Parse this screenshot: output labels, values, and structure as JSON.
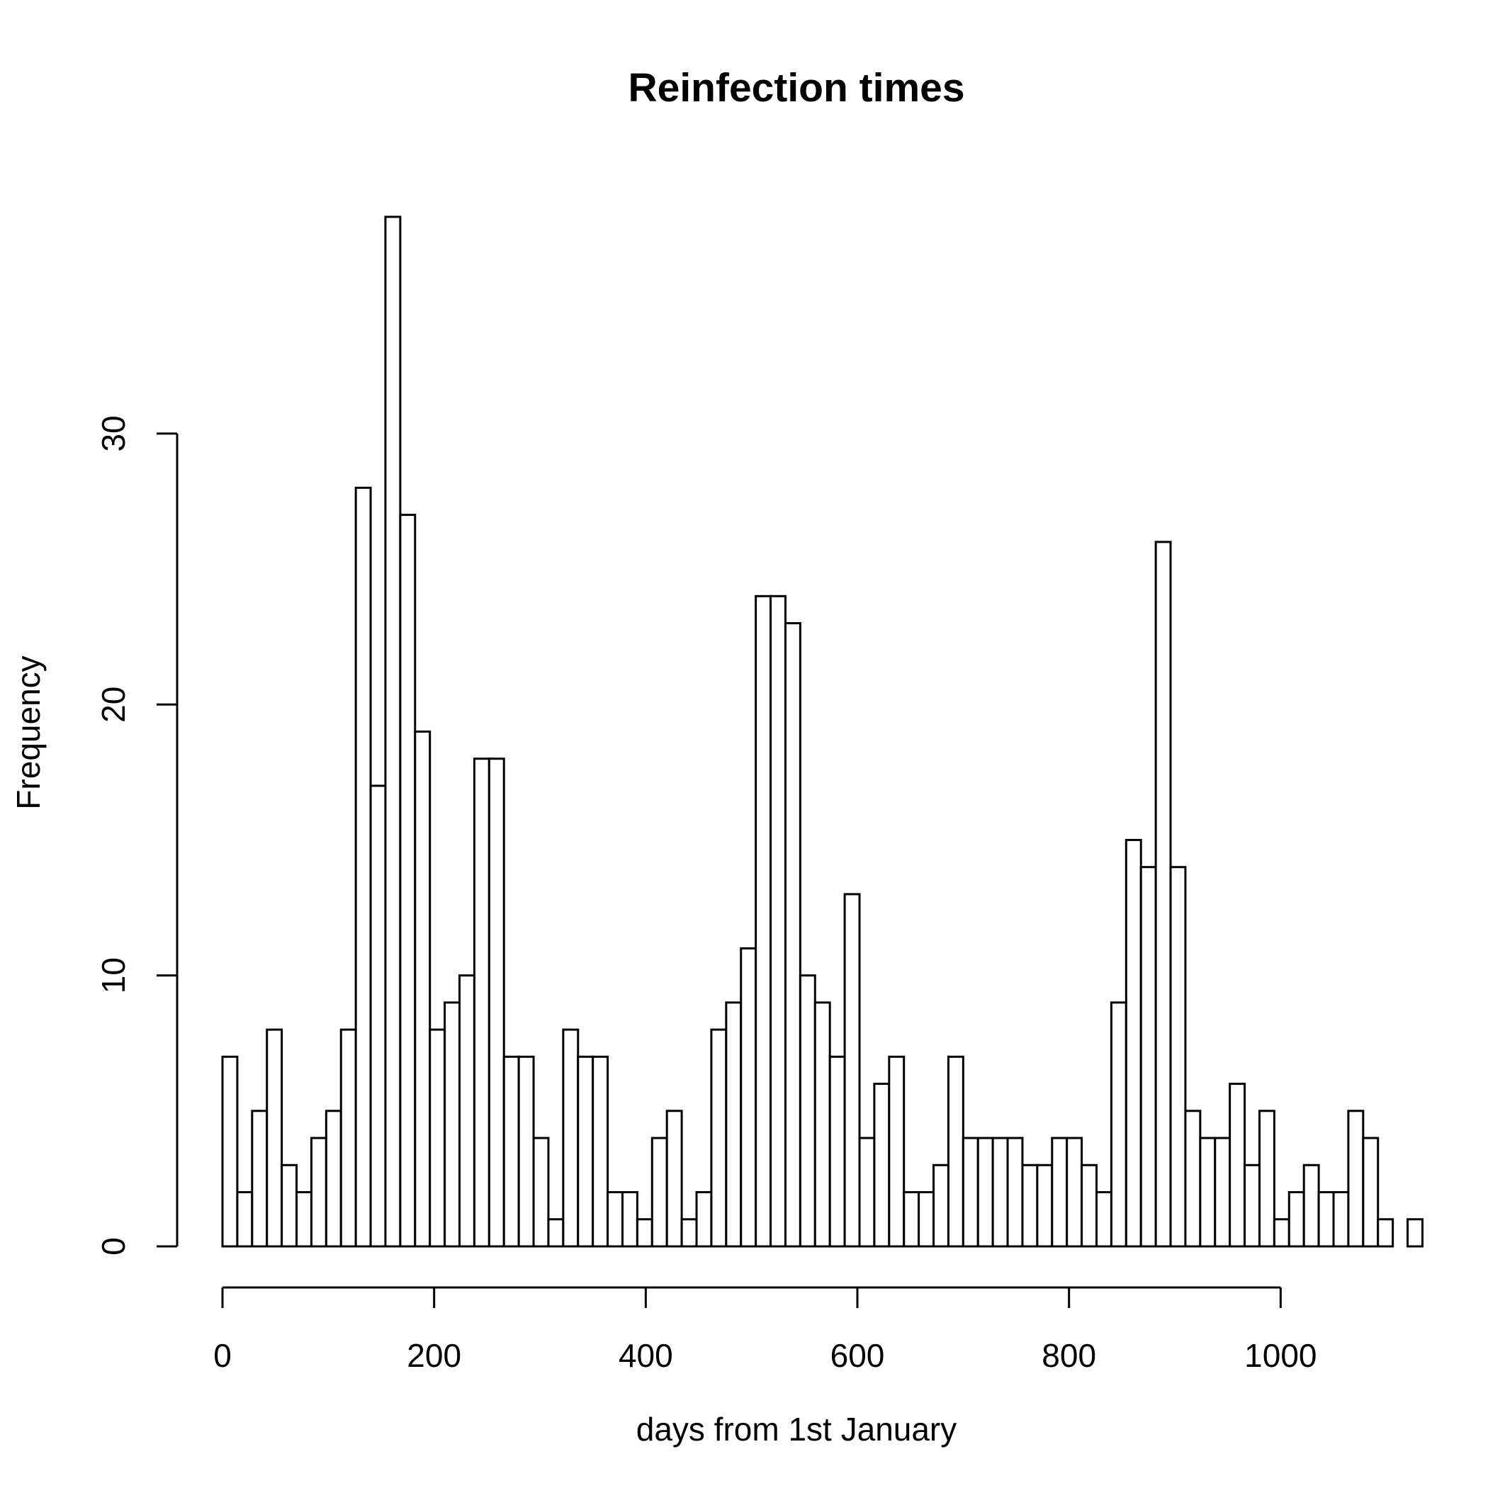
{
  "chart_data": {
    "type": "bar",
    "title": "Reinfection times",
    "xlabel": "days from 1st January",
    "ylabel": "Frequency",
    "bin_width": 14,
    "x_start": 0,
    "values": [
      7,
      2,
      5,
      8,
      3,
      2,
      4,
      5,
      8,
      28,
      17,
      38,
      27,
      19,
      8,
      9,
      10,
      18,
      18,
      7,
      7,
      4,
      1,
      8,
      7,
      7,
      2,
      2,
      1,
      4,
      5,
      1,
      2,
      8,
      9,
      11,
      24,
      24,
      23,
      10,
      9,
      7,
      13,
      4,
      6,
      7,
      2,
      2,
      3,
      7,
      4,
      4,
      4,
      4,
      3,
      3,
      4,
      4,
      3,
      2,
      9,
      15,
      14,
      26,
      14,
      5,
      4,
      4,
      6,
      3,
      5,
      1,
      2,
      3,
      2,
      2,
      5,
      4,
      1,
      0,
      1
    ],
    "xlim": [
      0,
      1127
    ],
    "ylim": [
      0,
      38
    ],
    "x_ticks": [
      0,
      200,
      400,
      600,
      800,
      1000
    ],
    "y_ticks": [
      0,
      10,
      20,
      30
    ],
    "x_tick_labels": [
      "0",
      "200",
      "400",
      "600",
      "800",
      "1000"
    ],
    "y_tick_labels": [
      "0",
      "10",
      "20",
      "30"
    ],
    "grid": false,
    "fill_color": "#ffffff",
    "stroke_color": "#000000"
  }
}
